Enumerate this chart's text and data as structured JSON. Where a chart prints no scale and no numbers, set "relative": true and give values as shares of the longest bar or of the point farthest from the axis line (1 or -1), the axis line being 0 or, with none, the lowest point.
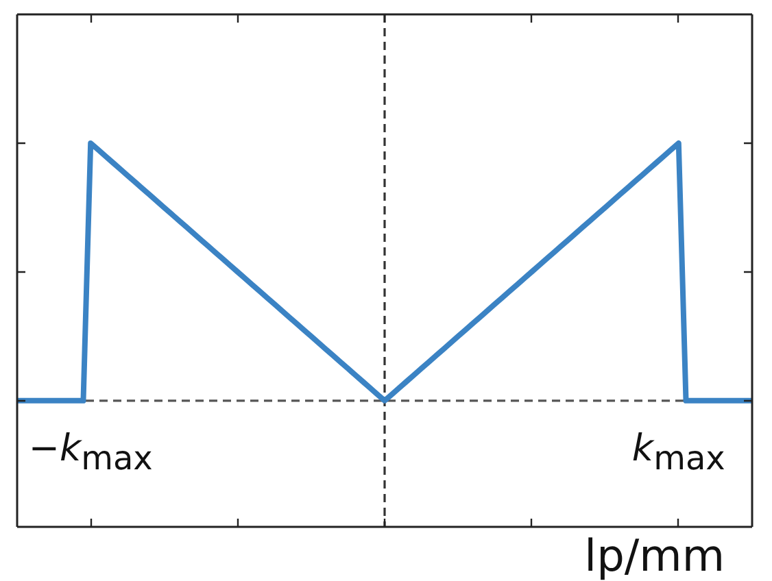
{
  "chart_data": {
    "type": "line",
    "xlabel": "lp/mm",
    "relative": true,
    "categories": [
      null,
      null,
      null,
      null,
      null,
      null,
      null,
      null,
      null,
      null,
      "−k$_{max}$",
      null,
      null,
      null,
      null,
      null,
      null,
      null,
      null,
      null,
      null,
      null,
      null,
      null,
      null,
      null,
      null,
      null,
      null,
      null,
      null,
      null,
      null,
      null,
      null,
      null,
      null,
      null,
      null,
      null,
      null,
      null,
      null,
      null,
      null,
      null,
      null,
      null,
      null,
      null,
      null,
      null,
      null,
      null,
      null,
      null,
      null,
      null,
      null,
      null,
      null,
      null,
      null,
      null,
      null,
      null,
      null,
      null,
      null,
      null,
      null,
      null,
      null,
      null,
      null,
      null,
      null,
      null,
      null,
      null,
      null,
      null,
      null,
      null,
      null,
      null,
      null,
      null,
      null,
      null,
      "k$_{max}$",
      null,
      null,
      null,
      null,
      null,
      null,
      null,
      null,
      null,
      null
    ],
    "values": [
      0,
      0,
      0,
      0,
      0,
      0,
      0,
      0,
      0,
      0,
      1,
      0.975,
      0.95,
      0.925,
      0.9,
      0.875,
      0.85,
      0.825,
      0.8,
      0.775,
      0.75,
      0.725,
      0.7,
      0.675,
      0.65,
      0.625,
      0.6,
      0.575,
      0.55,
      0.525,
      0.5,
      0.475,
      0.45,
      0.425,
      0.4,
      0.375,
      0.35,
      0.325,
      0.3,
      0.275,
      0.25,
      0.225,
      0.2,
      0.175,
      0.15,
      0.125,
      0.1,
      0.075,
      0.05,
      0.025,
      0,
      0.025,
      0.05,
      0.075,
      0.1,
      0.125,
      0.15,
      0.175,
      0.2,
      0.225,
      0.25,
      0.275,
      0.3,
      0.325,
      0.35,
      0.375,
      0.4,
      0.425,
      0.45,
      0.475,
      0.5,
      0.525,
      0.55,
      0.575,
      0.6,
      0.625,
      0.65,
      0.675,
      0.7,
      0.725,
      0.75,
      0.775,
      0.8,
      0.825,
      0.85,
      0.875,
      0.9,
      0.925,
      0.95,
      0.975,
      1,
      0,
      0,
      0,
      0,
      0,
      0,
      0,
      0,
      0,
      0
    ],
    "color": "#3b83c4",
    "tick_labels": "x",
    "marker": "none",
    "line_style": "solid"
  }
}
